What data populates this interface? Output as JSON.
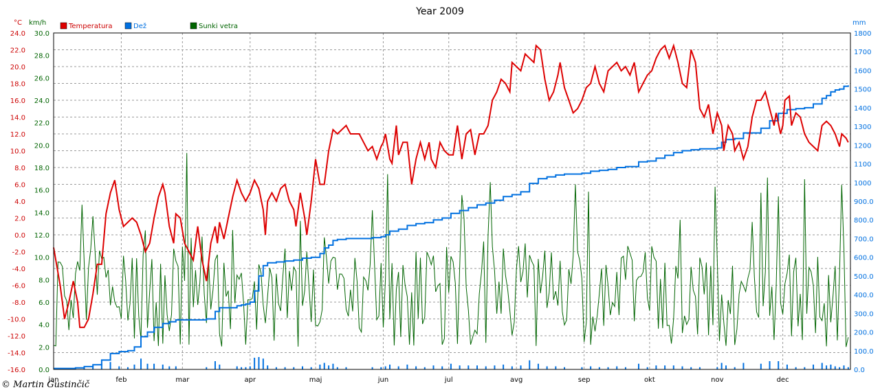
{
  "chart_data": {
    "type": "line",
    "title": "Year 2009",
    "copyright": "© Martin Gustinčič",
    "colors": {
      "temp": "#dd0000",
      "rain": "#0070e0",
      "wind": "#006400",
      "grid": "#999999",
      "axis_left": "#cc0000",
      "axis_left2": "#006400",
      "axis_right": "#0070e0"
    },
    "axes": {
      "left_unit": "°C",
      "left2_unit": "km/h",
      "right_unit": "mm",
      "temp_range": [
        -16,
        24
      ],
      "wind_range": [
        0,
        30
      ],
      "rain_range": [
        0,
        1800
      ],
      "temp_ticks": [
        "24.0",
        "22.0",
        "20.0",
        "18.0",
        "16.0",
        "14.0",
        "12.0",
        "10.0",
        "8.0",
        "6.0",
        "4.0",
        "2.0",
        "0.0",
        "-2.0",
        "-4.0",
        "-6.0",
        "-8.0",
        "-10.0",
        "-12.0",
        "-14.0",
        "-16.0"
      ],
      "wind_ticks": [
        "30.0",
        "28.0",
        "26.0",
        "24.0",
        "22.0",
        "20.0",
        "18.0",
        "16.0",
        "14.0",
        "12.0",
        "10.0",
        "8.0",
        "6.0",
        "4.0",
        "2.0",
        "0.0"
      ],
      "rain_ticks": [
        "1800",
        "1700",
        "1600",
        "1500",
        "1400",
        "1300",
        "1200",
        "1100",
        "1000",
        "900.0",
        "800.0",
        "700.0",
        "600.0",
        "500.0",
        "400.0",
        "300.0",
        "200.0",
        "100.0",
        "0.0"
      ],
      "months": [
        "jan",
        "feb",
        "mar",
        "apr",
        "maj",
        "jun",
        "jul",
        "avg",
        "sep",
        "okt",
        "nov",
        "dec"
      ],
      "month_start_days": [
        0,
        31,
        59,
        90,
        120,
        151,
        181,
        212,
        243,
        273,
        304,
        334
      ],
      "days_in_year": 365,
      "grid": true,
      "legend_position": "top-left"
    },
    "series": [
      {
        "name": "Temperatura",
        "key": "temp",
        "points": [
          [
            0,
            -1.5
          ],
          [
            3,
            -6
          ],
          [
            5,
            -10
          ],
          [
            7,
            -8
          ],
          [
            9,
            -5.5
          ],
          [
            11,
            -8
          ],
          [
            12,
            -11
          ],
          [
            14,
            -11
          ],
          [
            16,
            -10
          ],
          [
            18,
            -7
          ],
          [
            20,
            -3.5
          ],
          [
            22,
            -3.5
          ],
          [
            24,
            2.5
          ],
          [
            26,
            5
          ],
          [
            28,
            6.5
          ],
          [
            30,
            3
          ],
          [
            32,
            1
          ],
          [
            34,
            1.5
          ],
          [
            36,
            2
          ],
          [
            38,
            1.5
          ],
          [
            40,
            0
          ],
          [
            42,
            -2
          ],
          [
            44,
            -1
          ],
          [
            46,
            2
          ],
          [
            48,
            4.5
          ],
          [
            50,
            6
          ],
          [
            51,
            5
          ],
          [
            53,
            1
          ],
          [
            55,
            -1
          ],
          [
            56,
            2.5
          ],
          [
            58,
            2
          ],
          [
            60,
            -1
          ],
          [
            62,
            -2
          ],
          [
            64,
            -3
          ],
          [
            66,
            1
          ],
          [
            68,
            -3
          ],
          [
            70,
            -5.5
          ],
          [
            72,
            -1
          ],
          [
            74,
            1
          ],
          [
            75,
            -1
          ],
          [
            76,
            1.5
          ],
          [
            78,
            -0.5
          ],
          [
            80,
            2
          ],
          [
            82,
            4.5
          ],
          [
            84,
            6.5
          ],
          [
            86,
            5
          ],
          [
            88,
            4
          ],
          [
            90,
            5
          ],
          [
            92,
            6.5
          ],
          [
            94,
            5.5
          ],
          [
            96,
            3
          ],
          [
            97,
            0
          ],
          [
            98,
            4
          ],
          [
            100,
            5
          ],
          [
            102,
            4
          ],
          [
            104,
            5.5
          ],
          [
            106,
            6
          ],
          [
            108,
            4
          ],
          [
            110,
            3
          ],
          [
            111,
            1
          ],
          [
            113,
            5
          ],
          [
            115,
            2
          ],
          [
            116,
            0
          ],
          [
            118,
            4
          ],
          [
            120,
            9
          ],
          [
            122,
            6
          ],
          [
            124,
            6
          ],
          [
            126,
            10
          ],
          [
            128,
            12.5
          ],
          [
            130,
            12
          ],
          [
            132,
            12.5
          ],
          [
            134,
            13
          ],
          [
            136,
            12
          ],
          [
            138,
            12
          ],
          [
            140,
            12
          ],
          [
            142,
            11
          ],
          [
            144,
            10
          ],
          [
            146,
            10.5
          ],
          [
            148,
            9
          ],
          [
            150,
            10.5
          ],
          [
            151,
            11
          ],
          [
            152,
            12
          ],
          [
            154,
            9
          ],
          [
            155,
            8.5
          ],
          [
            157,
            13
          ],
          [
            158,
            9.5
          ],
          [
            160,
            11
          ],
          [
            162,
            11
          ],
          [
            164,
            6
          ],
          [
            166,
            9
          ],
          [
            168,
            11
          ],
          [
            170,
            9
          ],
          [
            172,
            11
          ],
          [
            173,
            9
          ],
          [
            175,
            8
          ],
          [
            177,
            11
          ],
          [
            179,
            10
          ],
          [
            181,
            9.5
          ],
          [
            183,
            9.5
          ],
          [
            185,
            13
          ],
          [
            187,
            9
          ],
          [
            189,
            12
          ],
          [
            191,
            12.5
          ],
          [
            193,
            9.5
          ],
          [
            195,
            12
          ],
          [
            197,
            12
          ],
          [
            199,
            13
          ],
          [
            201,
            16
          ],
          [
            203,
            17
          ],
          [
            205,
            18.5
          ],
          [
            207,
            18
          ],
          [
            209,
            17
          ],
          [
            210,
            20.5
          ],
          [
            212,
            20
          ],
          [
            214,
            19.5
          ],
          [
            216,
            21.5
          ],
          [
            218,
            21
          ],
          [
            220,
            20.5
          ],
          [
            221,
            22.5
          ],
          [
            223,
            22
          ],
          [
            225,
            18.5
          ],
          [
            227,
            16
          ],
          [
            229,
            17
          ],
          [
            231,
            19
          ],
          [
            232,
            20.5
          ],
          [
            234,
            17.5
          ],
          [
            236,
            16
          ],
          [
            238,
            14.5
          ],
          [
            240,
            15
          ],
          [
            242,
            16
          ],
          [
            244,
            17.5
          ],
          [
            246,
            18
          ],
          [
            248,
            20
          ],
          [
            250,
            18
          ],
          [
            252,
            17
          ],
          [
            254,
            19.5
          ],
          [
            256,
            20
          ],
          [
            258,
            20.5
          ],
          [
            260,
            19.5
          ],
          [
            262,
            20
          ],
          [
            264,
            19
          ],
          [
            266,
            20.5
          ],
          [
            268,
            17
          ],
          [
            270,
            18
          ],
          [
            272,
            19
          ],
          [
            274,
            19.5
          ],
          [
            276,
            21
          ],
          [
            278,
            22
          ],
          [
            280,
            22.5
          ],
          [
            282,
            21
          ],
          [
            284,
            22.5
          ],
          [
            286,
            20.5
          ],
          [
            288,
            18
          ],
          [
            290,
            17.5
          ],
          [
            292,
            22
          ],
          [
            294,
            20.5
          ],
          [
            296,
            15
          ],
          [
            298,
            14
          ],
          [
            300,
            15.5
          ],
          [
            302,
            12
          ],
          [
            304,
            14.5
          ],
          [
            306,
            13
          ],
          [
            307,
            10
          ],
          [
            309,
            13
          ],
          [
            311,
            12
          ],
          [
            312,
            10
          ],
          [
            314,
            11
          ],
          [
            316,
            9
          ],
          [
            318,
            10.5
          ],
          [
            320,
            14
          ],
          [
            322,
            16
          ],
          [
            324,
            16
          ],
          [
            326,
            17
          ],
          [
            328,
            15
          ],
          [
            330,
            13
          ],
          [
            331,
            14.5
          ],
          [
            333,
            12
          ],
          [
            334,
            13
          ],
          [
            335,
            16
          ],
          [
            337,
            16.5
          ],
          [
            338,
            13
          ],
          [
            340,
            14.5
          ],
          [
            342,
            14
          ],
          [
            344,
            12
          ],
          [
            346,
            11
          ],
          [
            348,
            10.5
          ],
          [
            350,
            10
          ],
          [
            352,
            13
          ],
          [
            354,
            13.5
          ],
          [
            356,
            13
          ],
          [
            358,
            12
          ],
          [
            360,
            10.5
          ],
          [
            361,
            12
          ],
          [
            363,
            11.5
          ],
          [
            364,
            11
          ]
        ]
      },
      {
        "name": "Dež",
        "key": "rain",
        "points": [
          [
            0,
            5
          ],
          [
            10,
            8
          ],
          [
            14,
            15
          ],
          [
            18,
            25
          ],
          [
            22,
            50
          ],
          [
            26,
            85
          ],
          [
            30,
            95
          ],
          [
            34,
            100
          ],
          [
            37,
            120
          ],
          [
            40,
            175
          ],
          [
            43,
            200
          ],
          [
            46,
            225
          ],
          [
            50,
            245
          ],
          [
            53,
            255
          ],
          [
            56,
            265
          ],
          [
            60,
            265
          ],
          [
            64,
            265
          ],
          [
            68,
            265
          ],
          [
            70,
            270
          ],
          [
            72,
            270
          ],
          [
            74,
            310
          ],
          [
            76,
            330
          ],
          [
            80,
            330
          ],
          [
            84,
            340
          ],
          [
            86,
            345
          ],
          [
            88,
            350
          ],
          [
            90,
            360
          ],
          [
            92,
            420
          ],
          [
            94,
            500
          ],
          [
            96,
            555
          ],
          [
            98,
            570
          ],
          [
            102,
            575
          ],
          [
            106,
            580
          ],
          [
            110,
            585
          ],
          [
            114,
            595
          ],
          [
            118,
            600
          ],
          [
            122,
            620
          ],
          [
            124,
            650
          ],
          [
            126,
            665
          ],
          [
            128,
            690
          ],
          [
            130,
            695
          ],
          [
            134,
            700
          ],
          [
            138,
            700
          ],
          [
            142,
            700
          ],
          [
            146,
            705
          ],
          [
            150,
            710
          ],
          [
            152,
            720
          ],
          [
            154,
            740
          ],
          [
            158,
            750
          ],
          [
            162,
            770
          ],
          [
            166,
            780
          ],
          [
            170,
            785
          ],
          [
            174,
            800
          ],
          [
            178,
            810
          ],
          [
            182,
            835
          ],
          [
            186,
            850
          ],
          [
            190,
            865
          ],
          [
            194,
            880
          ],
          [
            198,
            890
          ],
          [
            202,
            905
          ],
          [
            206,
            925
          ],
          [
            210,
            935
          ],
          [
            214,
            950
          ],
          [
            218,
            995
          ],
          [
            222,
            1020
          ],
          [
            226,
            1030
          ],
          [
            230,
            1040
          ],
          [
            234,
            1045
          ],
          [
            238,
            1045
          ],
          [
            242,
            1050
          ],
          [
            246,
            1060
          ],
          [
            250,
            1065
          ],
          [
            254,
            1070
          ],
          [
            258,
            1080
          ],
          [
            262,
            1085
          ],
          [
            266,
            1085
          ],
          [
            268,
            1110
          ],
          [
            272,
            1115
          ],
          [
            276,
            1130
          ],
          [
            280,
            1145
          ],
          [
            284,
            1160
          ],
          [
            288,
            1170
          ],
          [
            292,
            1175
          ],
          [
            296,
            1180
          ],
          [
            300,
            1180
          ],
          [
            304,
            1185
          ],
          [
            306,
            1215
          ],
          [
            308,
            1230
          ],
          [
            312,
            1235
          ],
          [
            316,
            1265
          ],
          [
            320,
            1265
          ],
          [
            324,
            1290
          ],
          [
            328,
            1330
          ],
          [
            332,
            1370
          ],
          [
            336,
            1390
          ],
          [
            340,
            1395
          ],
          [
            344,
            1400
          ],
          [
            348,
            1420
          ],
          [
            352,
            1450
          ],
          [
            354,
            1465
          ],
          [
            356,
            1485
          ],
          [
            358,
            1495
          ],
          [
            360,
            1500
          ],
          [
            362,
            1515
          ],
          [
            364,
            1520
          ]
        ]
      },
      {
        "name": "Sunki vetra",
        "key": "wind",
        "seed": 2009
      }
    ]
  }
}
